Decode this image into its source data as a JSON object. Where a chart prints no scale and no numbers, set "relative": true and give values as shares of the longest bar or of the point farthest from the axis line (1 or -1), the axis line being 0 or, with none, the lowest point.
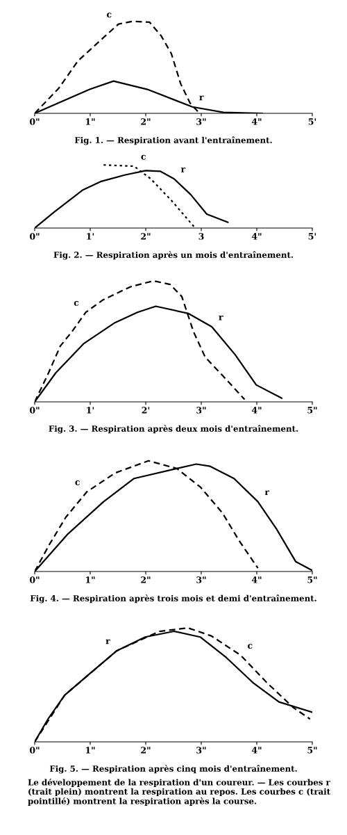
{
  "chart_data": [
    {
      "type": "line",
      "relative": true,
      "title": "Fig. 1. — Respiration avant l'entraînement.",
      "xlim": [
        0,
        5
      ],
      "xticks": [
        {
          "value": 0,
          "label": "0\""
        },
        {
          "value": 1,
          "label": "1\""
        },
        {
          "value": 2,
          "label": "2\""
        },
        {
          "value": 3,
          "label": "3\""
        },
        {
          "value": 4,
          "label": "4\""
        },
        {
          "value": 5,
          "label": "5'"
        }
      ],
      "legend": false,
      "grid": false,
      "tick_labels": "x",
      "series": [
        {
          "name": "c",
          "color": "#000000",
          "line_style": "dashed",
          "x": [
            0,
            0.43,
            0.78,
            1.16,
            1.51,
            1.77,
            2.07,
            2.28,
            2.46,
            2.63,
            2.8,
            2.97
          ],
          "values": [
            0,
            0.27,
            0.57,
            0.78,
            0.97,
            1.0,
            0.99,
            0.84,
            0.65,
            0.32,
            0.11,
            0
          ]
        },
        {
          "name": "r",
          "color": "#000000",
          "line_style": "solid",
          "x": [
            0,
            0.99,
            1.42,
            2.03,
            2.84,
            3.4,
            4.1
          ],
          "values": [
            0,
            0.26,
            0.35,
            0.26,
            0.07,
            0.01,
            0
          ]
        }
      ]
    },
    {
      "type": "line",
      "relative": true,
      "title": "Fig. 2. — Respiration après un mois d'entraînement.",
      "xlim": [
        0,
        5
      ],
      "xticks": [
        {
          "value": 0,
          "label": "0\""
        },
        {
          "value": 1,
          "label": "1'"
        },
        {
          "value": 2,
          "label": "2\""
        },
        {
          "value": 3,
          "label": "3"
        },
        {
          "value": 4,
          "label": "4\""
        },
        {
          "value": 5,
          "label": "5'"
        }
      ],
      "legend": false,
      "grid": false,
      "tick_labels": "x",
      "series": [
        {
          "name": "c",
          "color": "#000000",
          "line_style": "dotted",
          "x": [
            1.24,
            1.79,
            2.09,
            2.47,
            2.89
          ],
          "values": [
            1.0,
            0.98,
            0.78,
            0.43,
            0
          ]
        },
        {
          "name": "r",
          "color": "#000000",
          "line_style": "solid",
          "x": [
            0,
            0.36,
            0.86,
            1.2,
            1.62,
            2.0,
            2.26,
            2.51,
            2.81,
            3.1,
            3.48
          ],
          "values": [
            0,
            0.26,
            0.6,
            0.74,
            0.84,
            0.91,
            0.9,
            0.78,
            0.53,
            0.22,
            0.09
          ]
        }
      ]
    },
    {
      "type": "line",
      "relative": true,
      "title": "Fig. 3. — Respiration après deux mois d'entraînement.",
      "xlim": [
        0,
        5
      ],
      "xticks": [
        {
          "value": 0,
          "label": "0\""
        },
        {
          "value": 1,
          "label": "1'"
        },
        {
          "value": 2,
          "label": "2'"
        },
        {
          "value": 3,
          "label": "3\""
        },
        {
          "value": 4,
          "label": "4\""
        },
        {
          "value": 5,
          "label": "5\""
        }
      ],
      "legend": false,
      "grid": false,
      "tick_labels": "x",
      "series": [
        {
          "name": "c",
          "color": "#000000",
          "line_style": "dashed",
          "x": [
            0,
            0.25,
            0.46,
            0.67,
            0.92,
            1.22,
            1.72,
            2.14,
            2.44,
            2.65,
            2.86,
            3.07,
            3.4,
            3.78
          ],
          "values": [
            0,
            0.24,
            0.46,
            0.58,
            0.74,
            0.84,
            0.95,
            1.0,
            0.97,
            0.87,
            0.58,
            0.37,
            0.21,
            0.02
          ]
        },
        {
          "name": "r",
          "color": "#000000",
          "line_style": "solid",
          "x": [
            0,
            0.38,
            0.88,
            1.43,
            1.85,
            2.18,
            2.77,
            3.19,
            3.61,
            3.99,
            4.45
          ],
          "values": [
            0,
            0.24,
            0.48,
            0.65,
            0.74,
            0.79,
            0.73,
            0.62,
            0.39,
            0.14,
            0.03
          ]
        }
      ]
    },
    {
      "type": "line",
      "relative": true,
      "title": "Fig. 4. — Respiration après trois mois et demi d'entraînement.",
      "xlim": [
        0,
        5
      ],
      "xticks": [
        {
          "value": 0,
          "label": "0\""
        },
        {
          "value": 1,
          "label": "1\""
        },
        {
          "value": 2,
          "label": "2\""
        },
        {
          "value": 3,
          "label": "3\""
        },
        {
          "value": 4,
          "label": "4\""
        },
        {
          "value": 5,
          "label": "5\""
        }
      ],
      "legend": false,
      "grid": false,
      "tick_labels": "x",
      "series": [
        {
          "name": "c",
          "color": "#000000",
          "line_style": "dashed",
          "x": [
            0,
            0.26,
            0.56,
            0.94,
            1.45,
            2.05,
            2.56,
            2.99,
            3.38,
            3.68,
            4.02
          ],
          "values": [
            0,
            0.24,
            0.49,
            0.72,
            0.89,
            1.0,
            0.93,
            0.76,
            0.53,
            0.28,
            0.03
          ]
        },
        {
          "name": "r",
          "color": "#000000",
          "line_style": "solid",
          "x": [
            0,
            0.6,
            1.24,
            1.79,
            2.56,
            2.91,
            3.16,
            3.59,
            4.02,
            4.36,
            4.7,
            5.0
          ],
          "values": [
            0,
            0.34,
            0.63,
            0.84,
            0.93,
            0.97,
            0.95,
            0.84,
            0.63,
            0.38,
            0.09,
            0.01
          ]
        }
      ]
    },
    {
      "type": "line",
      "relative": true,
      "title": "Fig. 5. — Respiration après cinq mois d'entraînement.",
      "xlim": [
        0,
        5
      ],
      "xticks": [
        {
          "value": 0,
          "label": "0\""
        },
        {
          "value": 1,
          "label": "1\""
        },
        {
          "value": 2,
          "label": "2\""
        },
        {
          "value": 3,
          "label": "3\""
        },
        {
          "value": 4,
          "label": "4\""
        },
        {
          "value": 5,
          "label": "5\""
        }
      ],
      "legend": false,
      "grid": false,
      "tick_labels": "x",
      "annotations": [
        "Le développement de la respiration d'un coureur. — Les courbes r (trait plein) montrent la respiration au repos. Les courbes c (trait pointillé) montrent la respiration après la course."
      ],
      "series": [
        {
          "name": "r",
          "color": "#000000",
          "line_style": "solid",
          "x": [
            0,
            0.24,
            0.54,
            0.97,
            1.48,
            1.99,
            2.51,
            2.98,
            3.45,
            3.93,
            4.4,
            5.0
          ],
          "values": [
            0,
            0.2,
            0.41,
            0.59,
            0.8,
            0.92,
            0.97,
            0.92,
            0.74,
            0.52,
            0.35,
            0.26
          ]
        },
        {
          "name": "c",
          "color": "#000000",
          "line_style": "dashed",
          "x": [
            0,
            0.54,
            1.48,
            2.25,
            2.76,
            3.18,
            3.71,
            4.18,
            4.66,
            4.96
          ],
          "values": [
            0,
            0.41,
            0.8,
            0.97,
            1.0,
            0.93,
            0.76,
            0.52,
            0.3,
            0.2
          ]
        }
      ]
    }
  ]
}
